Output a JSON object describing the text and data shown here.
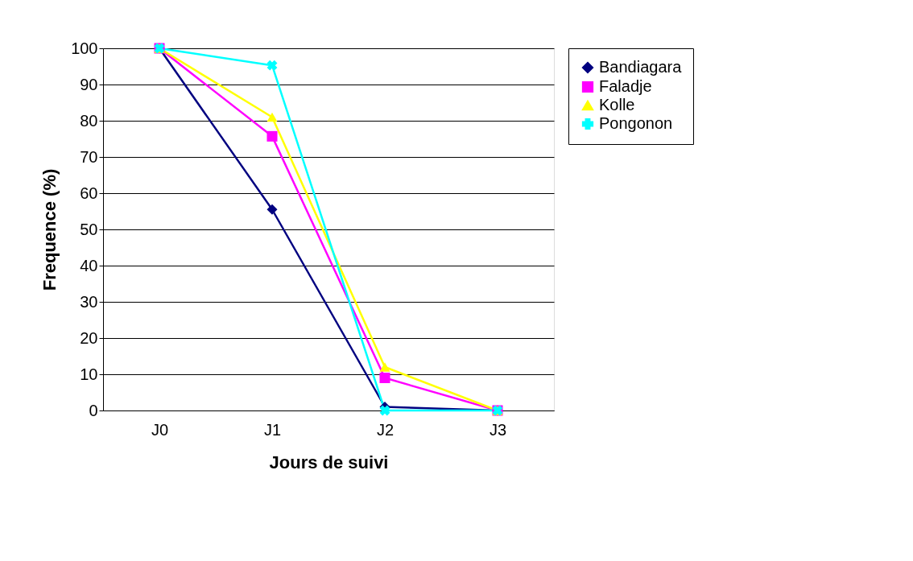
{
  "chart_data": {
    "type": "line",
    "xlabel": "Jours de suivi",
    "ylabel": "Frequence (%)",
    "categories": [
      "J0",
      "J1",
      "J2",
      "J3"
    ],
    "series": [
      {
        "name": "Bandiagara",
        "color": "#000080",
        "marker": "diamond",
        "values": [
          100,
          55.5,
          1,
          0
        ]
      },
      {
        "name": "Faladje",
        "color": "#ff00ff",
        "marker": "square",
        "values": [
          100,
          75.7,
          9,
          0
        ]
      },
      {
        "name": "Kolle",
        "color": "#ffff00",
        "marker": "triangle",
        "values": [
          100,
          81,
          12,
          0
        ]
      },
      {
        "name": "Pongonon",
        "color": "#00ffff",
        "marker": "cross",
        "values": [
          100,
          95.3,
          0,
          0
        ]
      }
    ],
    "ylim": [
      0,
      100
    ],
    "yticks": [
      0,
      10,
      20,
      30,
      40,
      50,
      60,
      70,
      80,
      90,
      100
    ],
    "grid": "y",
    "legend": "right",
    "line_style": "solid"
  }
}
